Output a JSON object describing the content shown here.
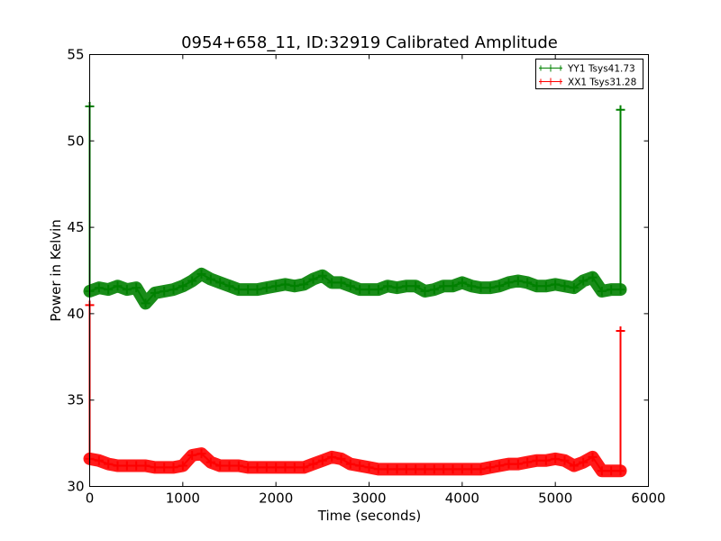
{
  "chart_data": {
    "type": "line",
    "title": "0954+658_11, ID:32919 Calibrated Amplitude",
    "xlabel": "Time (seconds)",
    "ylabel": "Power in Kelvin",
    "xlim": [
      0,
      6000
    ],
    "ylim": [
      30,
      55
    ],
    "xticks": [
      "0",
      "1000",
      "2000",
      "3000",
      "4000",
      "5000",
      "6000"
    ],
    "yticks": [
      "30",
      "35",
      "40",
      "45",
      "50",
      "55"
    ],
    "grid": false,
    "legend_position": "top-right",
    "x": [
      0,
      0,
      100,
      200,
      300,
      400,
      500,
      600,
      700,
      800,
      900,
      1000,
      1100,
      1200,
      1300,
      1400,
      1500,
      1600,
      1700,
      1800,
      1900,
      2000,
      2100,
      2200,
      2300,
      2400,
      2500,
      2600,
      2700,
      2800,
      2900,
      3000,
      3100,
      3200,
      3300,
      3400,
      3500,
      3600,
      3700,
      3800,
      3900,
      4000,
      4100,
      4200,
      4300,
      4400,
      4500,
      4600,
      4700,
      4800,
      4900,
      5000,
      5100,
      5200,
      5300,
      5400,
      5500,
      5600,
      5700,
      5700
    ],
    "series": [
      {
        "name": "YY1 Tsys41.73",
        "color": "#008000",
        "values": [
          52.0,
          41.3,
          41.5,
          41.4,
          41.6,
          41.4,
          41.5,
          40.6,
          41.2,
          41.3,
          41.4,
          41.6,
          41.9,
          42.3,
          42.0,
          41.8,
          41.6,
          41.4,
          41.4,
          41.4,
          41.5,
          41.6,
          41.7,
          41.6,
          41.7,
          42.0,
          42.2,
          41.8,
          41.8,
          41.6,
          41.4,
          41.4,
          41.4,
          41.6,
          41.5,
          41.6,
          41.6,
          41.3,
          41.4,
          41.6,
          41.6,
          41.8,
          41.6,
          41.5,
          41.5,
          41.6,
          41.8,
          41.9,
          41.8,
          41.6,
          41.6,
          41.7,
          41.6,
          41.5,
          41.9,
          42.1,
          41.3,
          41.4,
          41.4,
          51.8
        ]
      },
      {
        "name": "XX1 Tsys31.28",
        "color": "#ff0000",
        "values": [
          40.5,
          31.6,
          31.5,
          31.3,
          31.2,
          31.2,
          31.2,
          31.2,
          31.1,
          31.1,
          31.1,
          31.2,
          31.8,
          31.9,
          31.4,
          31.2,
          31.2,
          31.2,
          31.1,
          31.1,
          31.1,
          31.1,
          31.1,
          31.1,
          31.1,
          31.3,
          31.5,
          31.7,
          31.6,
          31.3,
          31.2,
          31.1,
          31.0,
          31.0,
          31.0,
          31.0,
          31.0,
          31.0,
          31.0,
          31.0,
          31.0,
          31.0,
          31.0,
          31.0,
          31.1,
          31.2,
          31.3,
          31.3,
          31.4,
          31.5,
          31.5,
          31.6,
          31.5,
          31.2,
          31.4,
          31.7,
          30.9,
          30.9,
          30.9,
          39.0
        ]
      }
    ]
  }
}
